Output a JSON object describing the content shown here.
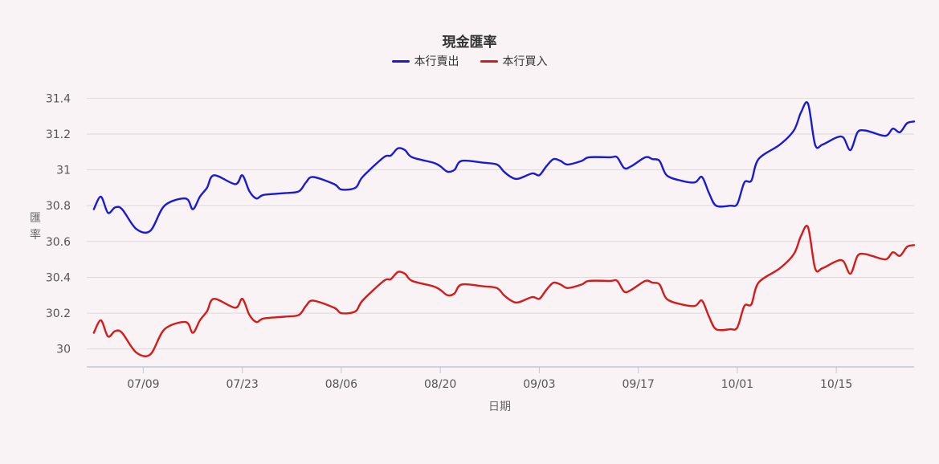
{
  "chart_data": {
    "type": "line",
    "title": "現金匯率",
    "xlabel": "日期",
    "ylabel": "匯率",
    "ylim": [
      29.9,
      31.5
    ],
    "yticks": [
      30,
      30.2,
      30.4,
      30.6,
      30.8,
      31,
      31.2,
      31.4
    ],
    "ytick_labels": [
      "30",
      "30.2",
      "30.4",
      "30.6",
      "30.8",
      "31",
      "31.2",
      "31.4"
    ],
    "xticks": [
      {
        "label": "07/09",
        "date": "2024-07-09"
      },
      {
        "label": "07/23",
        "date": "2024-07-23"
      },
      {
        "label": "08/06",
        "date": "2024-08-06"
      },
      {
        "label": "08/20",
        "date": "2024-08-20"
      },
      {
        "label": "09/03",
        "date": "2024-09-03"
      },
      {
        "label": "09/17",
        "date": "2024-09-17"
      },
      {
        "label": "10/01",
        "date": "2024-10-01"
      },
      {
        "label": "10/15",
        "date": "2024-10-15"
      }
    ],
    "x_range": [
      "2024-07-01",
      "2024-10-26"
    ],
    "grid": true,
    "legend_position": "top-center",
    "series": [
      {
        "name": "本行賣出",
        "color": "#1a1ad6",
        "points": [
          [
            "2024-07-02",
            30.78
          ],
          [
            "2024-07-03",
            30.85
          ],
          [
            "2024-07-04",
            30.76
          ],
          [
            "2024-07-05",
            30.79
          ],
          [
            "2024-07-06",
            30.78
          ],
          [
            "2024-07-08",
            30.67
          ],
          [
            "2024-07-10",
            30.66
          ],
          [
            "2024-07-12",
            30.8
          ],
          [
            "2024-07-15",
            30.84
          ],
          [
            "2024-07-16",
            30.78
          ],
          [
            "2024-07-17",
            30.85
          ],
          [
            "2024-07-18",
            30.9
          ],
          [
            "2024-07-19",
            30.97
          ],
          [
            "2024-07-22",
            30.92
          ],
          [
            "2024-07-23",
            30.97
          ],
          [
            "2024-07-24",
            30.88
          ],
          [
            "2024-07-25",
            30.84
          ],
          [
            "2024-07-26",
            30.86
          ],
          [
            "2024-07-29",
            30.87
          ],
          [
            "2024-07-31",
            30.88
          ],
          [
            "2024-08-01",
            30.93
          ],
          [
            "2024-08-02",
            30.96
          ],
          [
            "2024-08-05",
            30.92
          ],
          [
            "2024-08-06",
            30.89
          ],
          [
            "2024-08-08",
            30.9
          ],
          [
            "2024-08-09",
            30.96
          ],
          [
            "2024-08-12",
            31.07
          ],
          [
            "2024-08-13",
            31.08
          ],
          [
            "2024-08-14",
            31.12
          ],
          [
            "2024-08-15",
            31.11
          ],
          [
            "2024-08-16",
            31.07
          ],
          [
            "2024-08-19",
            31.04
          ],
          [
            "2024-08-20",
            31.02
          ],
          [
            "2024-08-21",
            30.99
          ],
          [
            "2024-08-22",
            31.0
          ],
          [
            "2024-08-23",
            31.05
          ],
          [
            "2024-08-26",
            31.04
          ],
          [
            "2024-08-28",
            31.03
          ],
          [
            "2024-08-29",
            30.99
          ],
          [
            "2024-08-30",
            30.96
          ],
          [
            "2024-08-31",
            30.95
          ],
          [
            "2024-09-02",
            30.98
          ],
          [
            "2024-09-03",
            30.97
          ],
          [
            "2024-09-04",
            31.02
          ],
          [
            "2024-09-05",
            31.06
          ],
          [
            "2024-09-06",
            31.05
          ],
          [
            "2024-09-07",
            31.03
          ],
          [
            "2024-09-09",
            31.05
          ],
          [
            "2024-09-10",
            31.07
          ],
          [
            "2024-09-13",
            31.07
          ],
          [
            "2024-09-14",
            31.07
          ],
          [
            "2024-09-15",
            31.01
          ],
          [
            "2024-09-16",
            31.02
          ],
          [
            "2024-09-18",
            31.07
          ],
          [
            "2024-09-19",
            31.06
          ],
          [
            "2024-09-20",
            31.05
          ],
          [
            "2024-09-21",
            30.97
          ],
          [
            "2024-09-23",
            30.94
          ],
          [
            "2024-09-25",
            30.93
          ],
          [
            "2024-09-26",
            30.96
          ],
          [
            "2024-09-27",
            30.87
          ],
          [
            "2024-09-28",
            30.8
          ],
          [
            "2024-09-30",
            30.8
          ],
          [
            "2024-10-01",
            30.81
          ],
          [
            "2024-10-02",
            30.93
          ],
          [
            "2024-10-03",
            30.94
          ],
          [
            "2024-10-04",
            31.06
          ],
          [
            "2024-10-07",
            31.14
          ],
          [
            "2024-10-09",
            31.22
          ],
          [
            "2024-10-10",
            31.32
          ],
          [
            "2024-10-11",
            31.37
          ],
          [
            "2024-10-12",
            31.14
          ],
          [
            "2024-10-13",
            31.14
          ],
          [
            "2024-10-15",
            31.18
          ],
          [
            "2024-10-16",
            31.18
          ],
          [
            "2024-10-17",
            31.11
          ],
          [
            "2024-10-18",
            31.21
          ],
          [
            "2024-10-19",
            31.22
          ],
          [
            "2024-10-20",
            31.21
          ],
          [
            "2024-10-22",
            31.19
          ],
          [
            "2024-10-23",
            31.23
          ],
          [
            "2024-10-24",
            31.21
          ],
          [
            "2024-10-25",
            31.26
          ],
          [
            "2024-10-26",
            31.27
          ]
        ]
      },
      {
        "name": "本行買入",
        "color": "#d61a1a",
        "points": [
          [
            "2024-07-02",
            30.09
          ],
          [
            "2024-07-03",
            30.16
          ],
          [
            "2024-07-04",
            30.07
          ],
          [
            "2024-07-05",
            30.1
          ],
          [
            "2024-07-06",
            30.09
          ],
          [
            "2024-07-08",
            29.98
          ],
          [
            "2024-07-10",
            29.97
          ],
          [
            "2024-07-12",
            30.11
          ],
          [
            "2024-07-15",
            30.15
          ],
          [
            "2024-07-16",
            30.09
          ],
          [
            "2024-07-17",
            30.16
          ],
          [
            "2024-07-18",
            30.21
          ],
          [
            "2024-07-19",
            30.28
          ],
          [
            "2024-07-22",
            30.23
          ],
          [
            "2024-07-23",
            30.28
          ],
          [
            "2024-07-24",
            30.19
          ],
          [
            "2024-07-25",
            30.15
          ],
          [
            "2024-07-26",
            30.17
          ],
          [
            "2024-07-29",
            30.18
          ],
          [
            "2024-07-31",
            30.19
          ],
          [
            "2024-08-01",
            30.24
          ],
          [
            "2024-08-02",
            30.27
          ],
          [
            "2024-08-05",
            30.23
          ],
          [
            "2024-08-06",
            30.2
          ],
          [
            "2024-08-08",
            30.21
          ],
          [
            "2024-08-09",
            30.27
          ],
          [
            "2024-08-12",
            30.38
          ],
          [
            "2024-08-13",
            30.39
          ],
          [
            "2024-08-14",
            30.43
          ],
          [
            "2024-08-15",
            30.42
          ],
          [
            "2024-08-16",
            30.38
          ],
          [
            "2024-08-19",
            30.35
          ],
          [
            "2024-08-20",
            30.33
          ],
          [
            "2024-08-21",
            30.3
          ],
          [
            "2024-08-22",
            30.31
          ],
          [
            "2024-08-23",
            30.36
          ],
          [
            "2024-08-26",
            30.35
          ],
          [
            "2024-08-28",
            30.34
          ],
          [
            "2024-08-29",
            30.3
          ],
          [
            "2024-08-30",
            30.27
          ],
          [
            "2024-08-31",
            30.26
          ],
          [
            "2024-09-02",
            30.29
          ],
          [
            "2024-09-03",
            30.28
          ],
          [
            "2024-09-04",
            30.33
          ],
          [
            "2024-09-05",
            30.37
          ],
          [
            "2024-09-06",
            30.36
          ],
          [
            "2024-09-07",
            30.34
          ],
          [
            "2024-09-09",
            30.36
          ],
          [
            "2024-09-10",
            30.38
          ],
          [
            "2024-09-13",
            30.38
          ],
          [
            "2024-09-14",
            30.38
          ],
          [
            "2024-09-15",
            30.32
          ],
          [
            "2024-09-16",
            30.33
          ],
          [
            "2024-09-18",
            30.38
          ],
          [
            "2024-09-19",
            30.37
          ],
          [
            "2024-09-20",
            30.36
          ],
          [
            "2024-09-21",
            30.28
          ],
          [
            "2024-09-23",
            30.25
          ],
          [
            "2024-09-25",
            30.24
          ],
          [
            "2024-09-26",
            30.27
          ],
          [
            "2024-09-27",
            30.18
          ],
          [
            "2024-09-28",
            30.11
          ],
          [
            "2024-09-30",
            30.11
          ],
          [
            "2024-10-01",
            30.12
          ],
          [
            "2024-10-02",
            30.24
          ],
          [
            "2024-10-03",
            30.25
          ],
          [
            "2024-10-04",
            30.37
          ],
          [
            "2024-10-07",
            30.45
          ],
          [
            "2024-10-09",
            30.53
          ],
          [
            "2024-10-10",
            30.63
          ],
          [
            "2024-10-11",
            30.68
          ],
          [
            "2024-10-12",
            30.45
          ],
          [
            "2024-10-13",
            30.45
          ],
          [
            "2024-10-15",
            30.49
          ],
          [
            "2024-10-16",
            30.49
          ],
          [
            "2024-10-17",
            30.42
          ],
          [
            "2024-10-18",
            30.52
          ],
          [
            "2024-10-19",
            30.53
          ],
          [
            "2024-10-20",
            30.52
          ],
          [
            "2024-10-22",
            30.5
          ],
          [
            "2024-10-23",
            30.54
          ],
          [
            "2024-10-24",
            30.52
          ],
          [
            "2024-10-25",
            30.57
          ],
          [
            "2024-10-26",
            30.58
          ]
        ]
      }
    ]
  }
}
